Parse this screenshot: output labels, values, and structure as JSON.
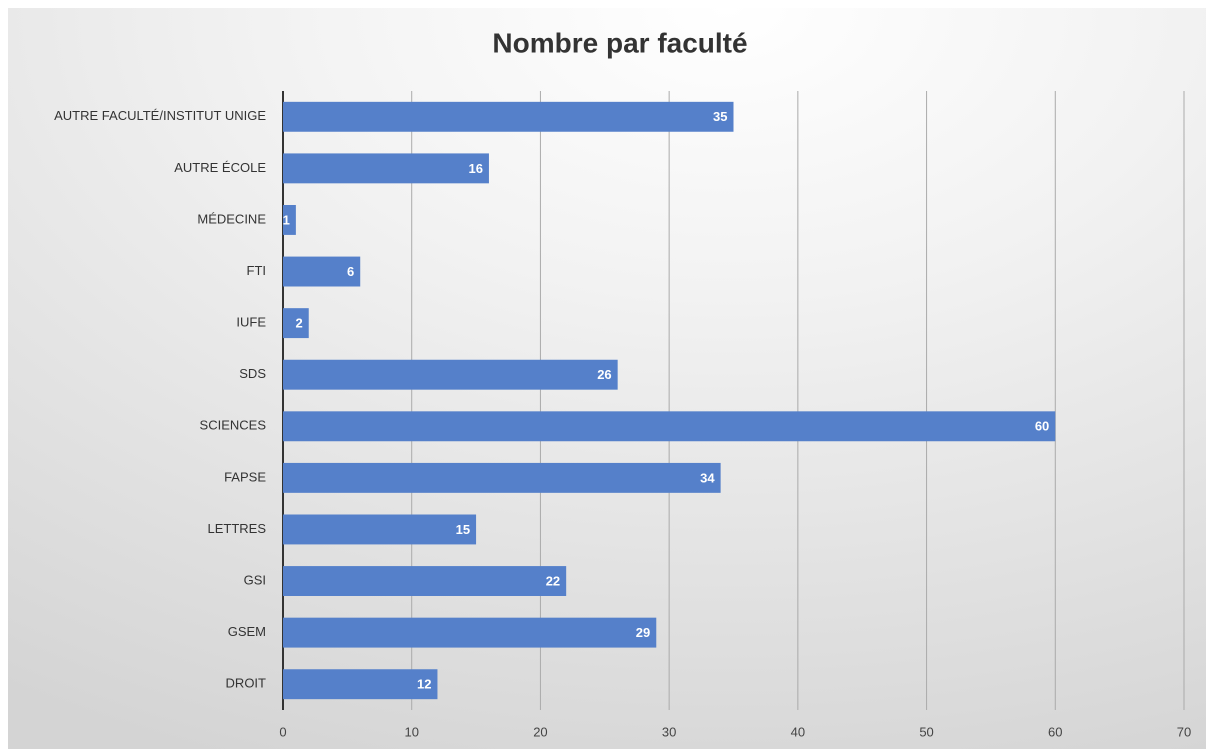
{
  "chart_data": {
    "type": "bar",
    "orientation": "horizontal",
    "title": "Nombre par faculté",
    "categories": [
      "AUTRE FACULTÉ/INSTITUT UNIGE",
      "AUTRE ÉCOLE",
      "MÉDECINE",
      "FTI",
      "IUFE",
      "SDS",
      "SCIENCES",
      "FAPSE",
      "LETTRES",
      "GSI",
      "GSEM",
      "DROIT"
    ],
    "values": [
      35,
      16,
      1,
      6,
      2,
      26,
      60,
      34,
      15,
      22,
      29,
      12
    ],
    "color": "#5580ca",
    "xlim": [
      0,
      70
    ],
    "xticks": [
      0,
      10,
      20,
      30,
      40,
      50,
      60,
      70
    ],
    "grid": true
  }
}
